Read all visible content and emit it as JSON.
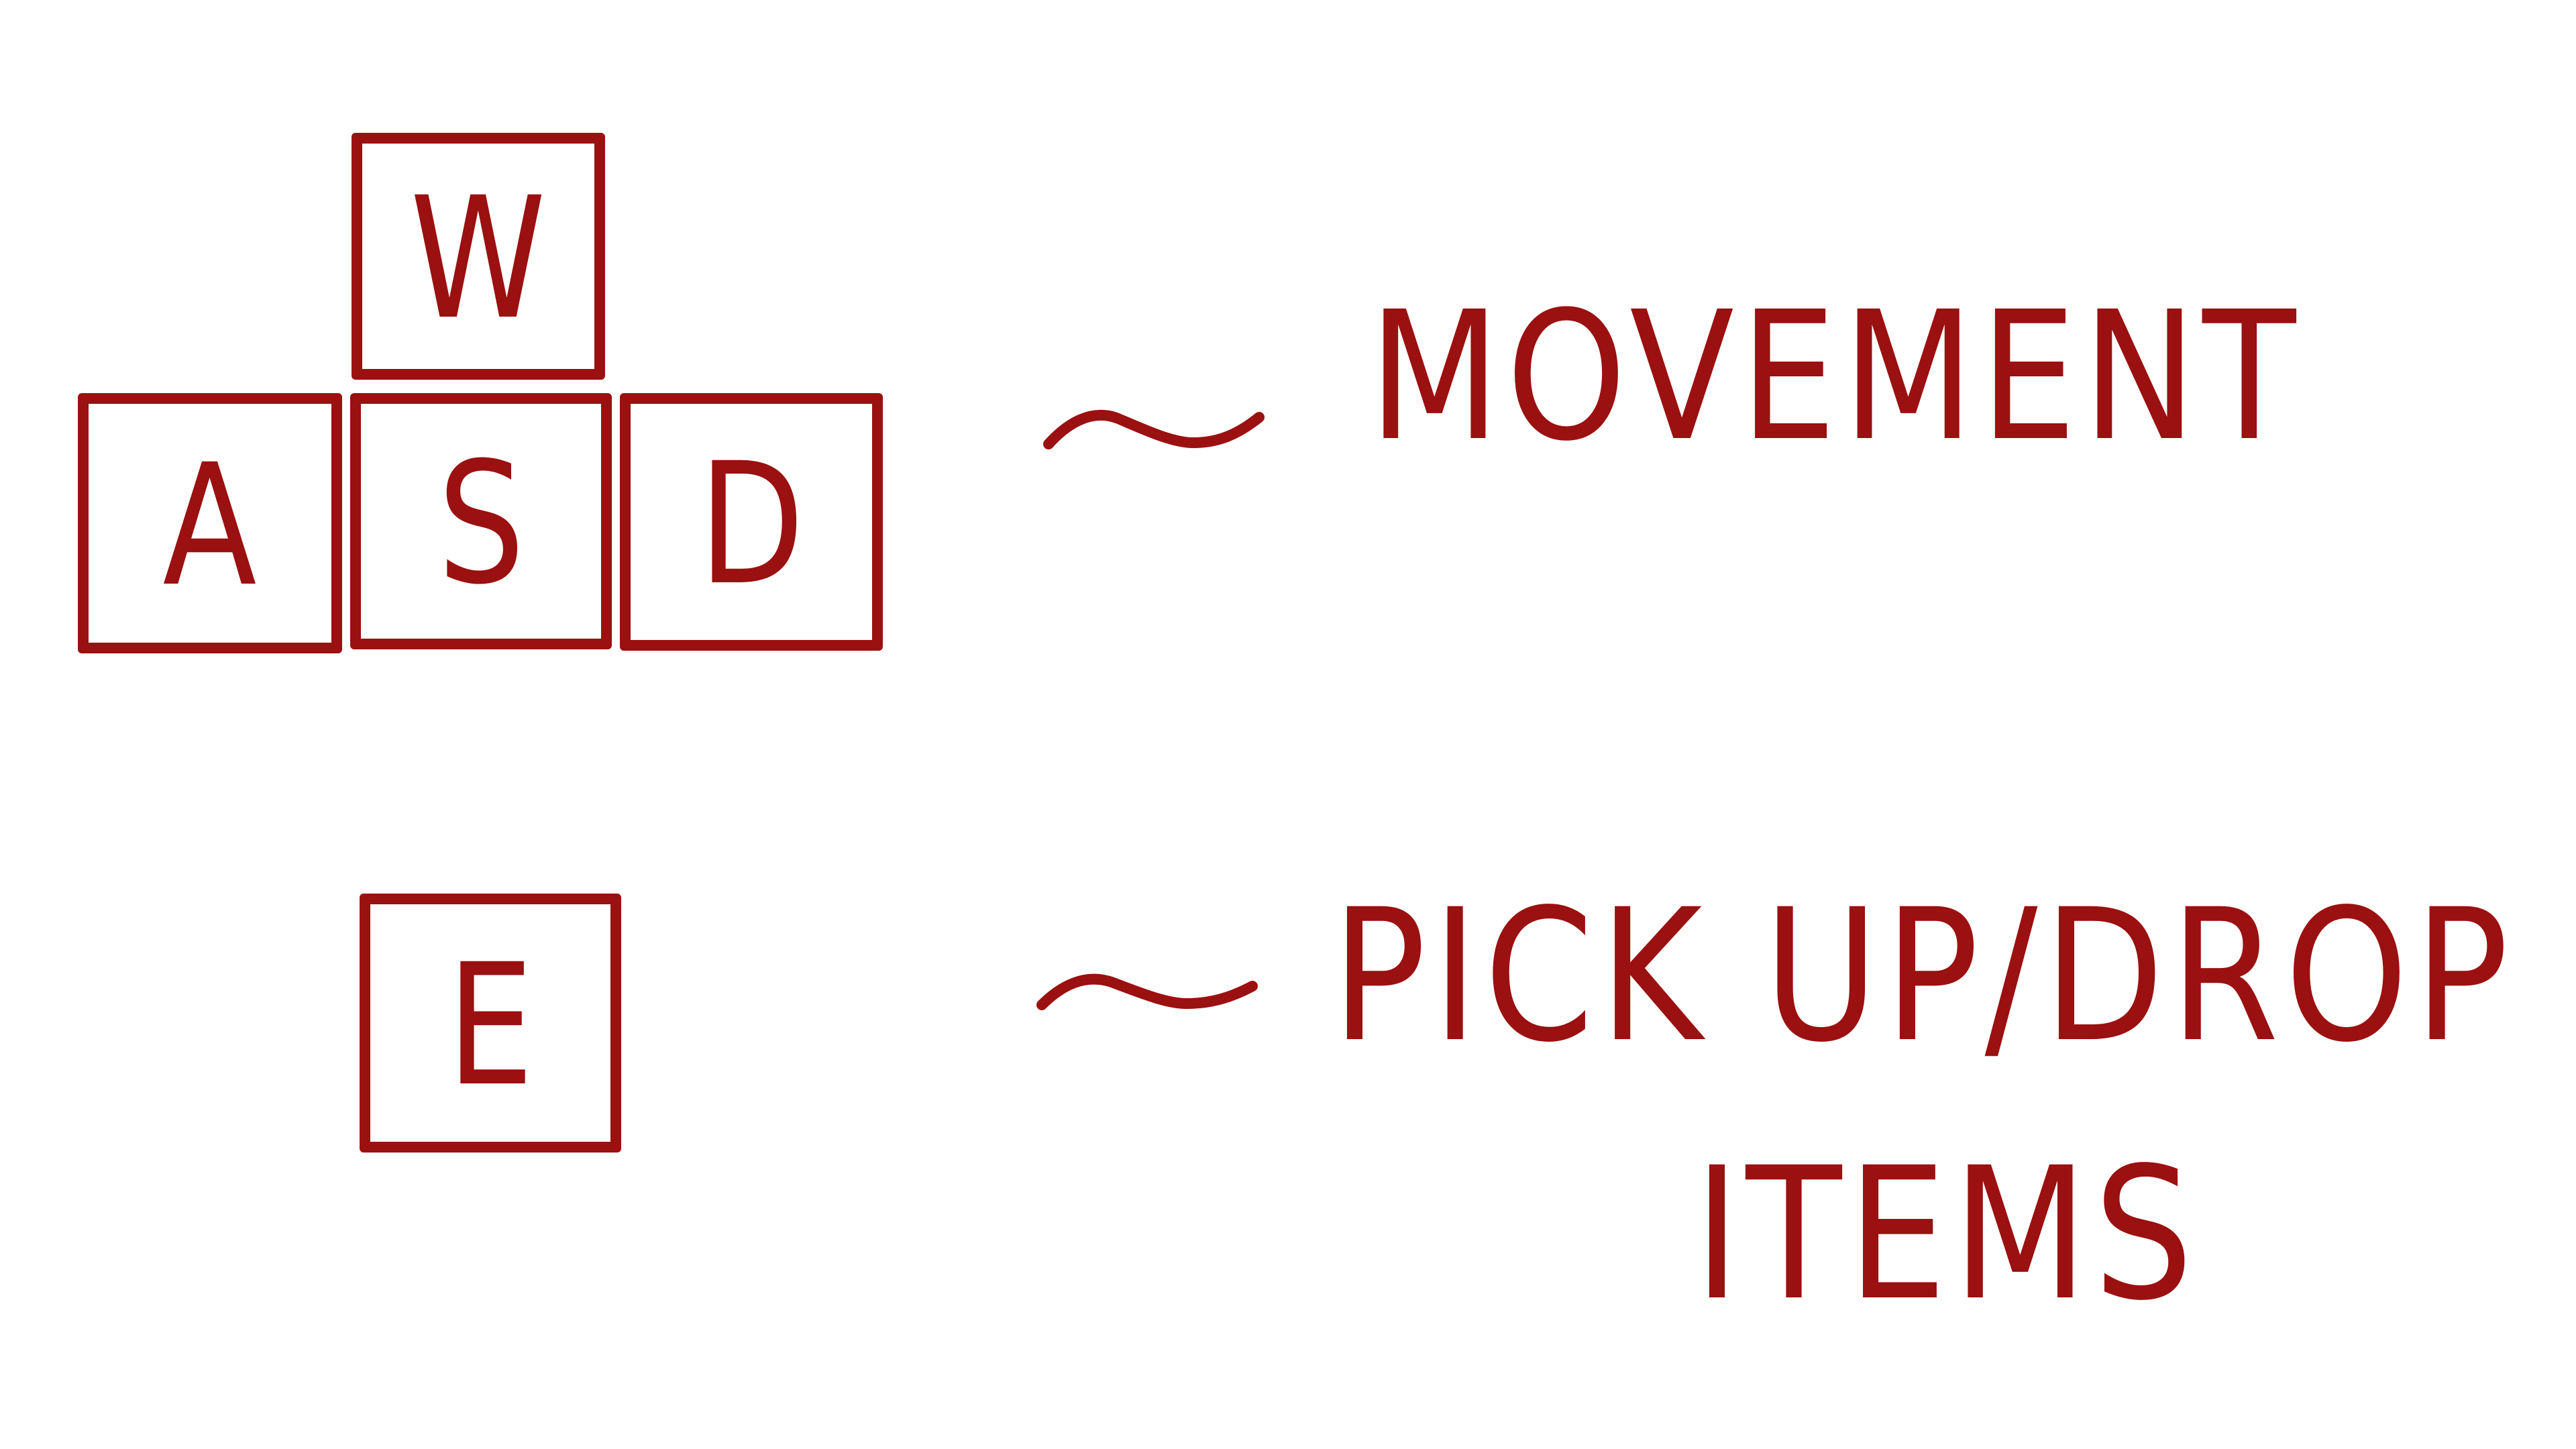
{
  "theme": {
    "ink_color": "#9b1010",
    "background_color": "#ffffff"
  },
  "keys": {
    "w": "W",
    "a": "A",
    "s": "S",
    "d": "D",
    "e": "E"
  },
  "bindings": {
    "movement_separator": "~",
    "movement_label": "MOVEMENT",
    "pickup_separator": "~",
    "pickup_label_line1": "PICK UP/DROP",
    "pickup_label_line2": "ITEMS"
  }
}
